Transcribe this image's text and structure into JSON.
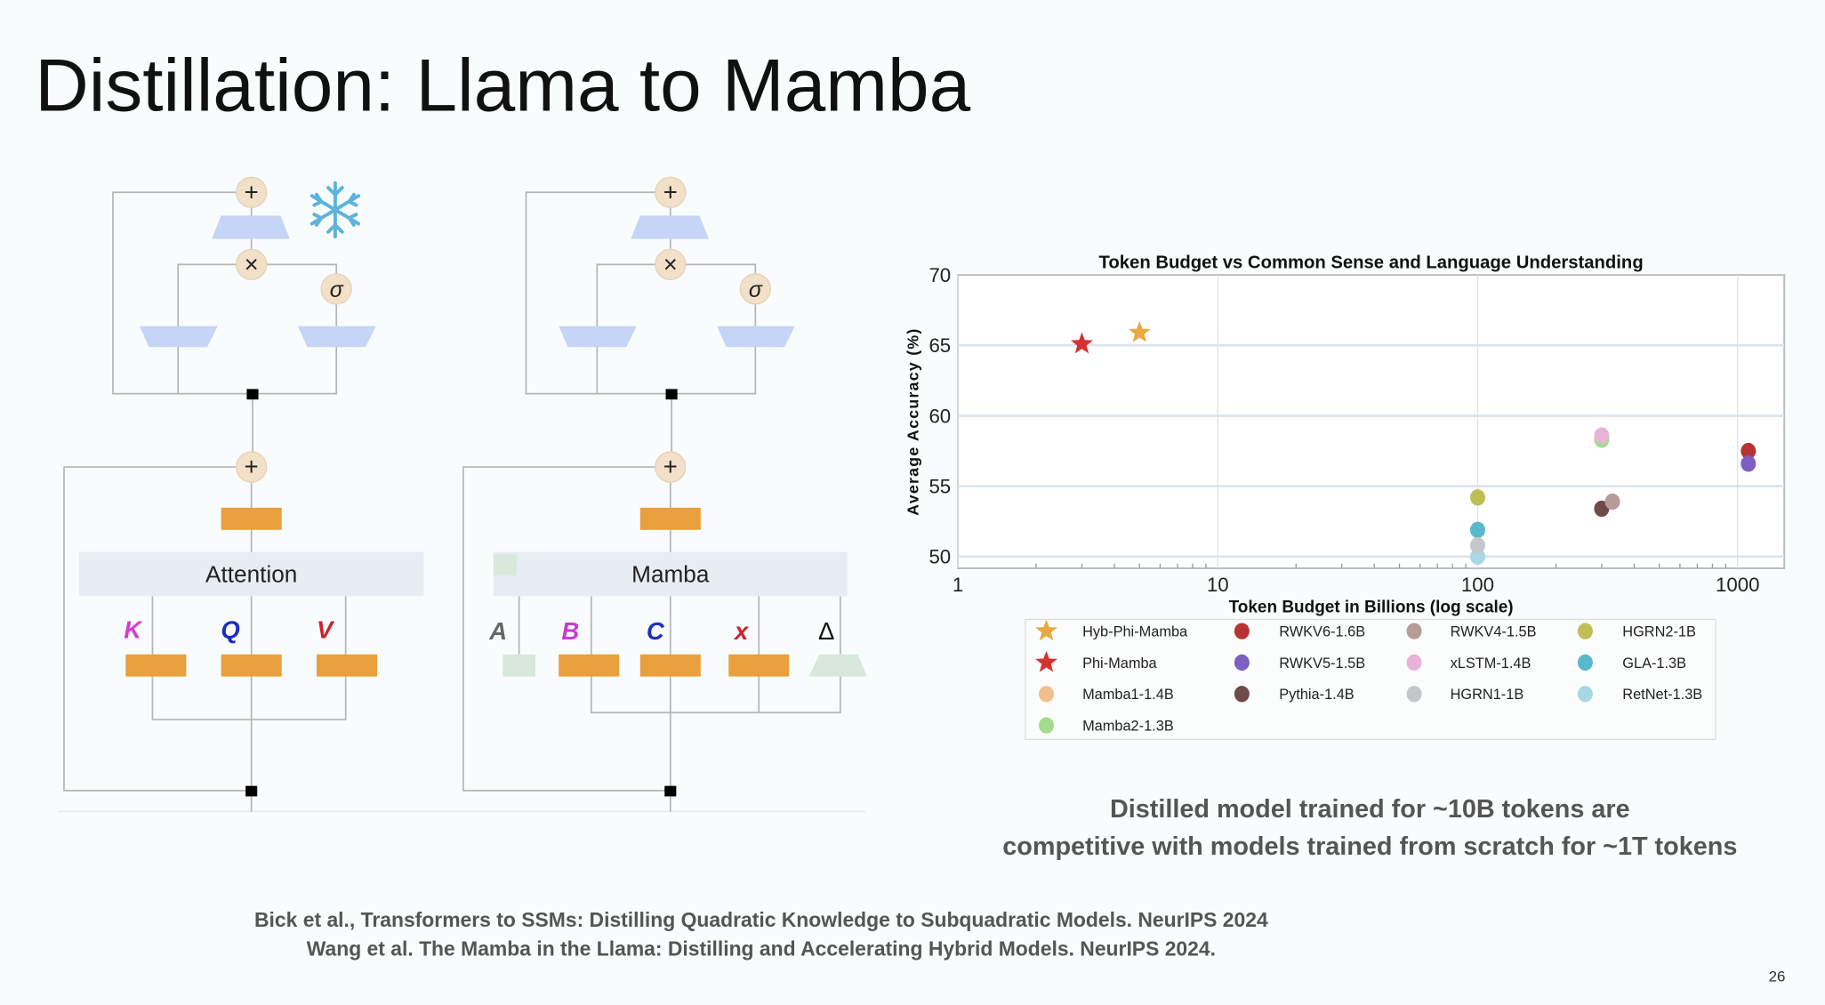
{
  "title": "Distillation: Llama to Mamba",
  "diagram": {
    "left": {
      "block_label": "Attention",
      "inputs": [
        "K",
        "Q",
        "V"
      ],
      "frozen_icon": "snowflake-icon"
    },
    "right": {
      "block_label": "Mamba",
      "inputs": [
        "A",
        "B",
        "C",
        "x",
        "Δ"
      ]
    },
    "symbols": {
      "plus": "+",
      "times": "×",
      "sigma": "σ"
    },
    "colors": {
      "K": "#d63ad6",
      "Q": "#1a2fc0",
      "V": "#d0202a",
      "A": "#666666",
      "B": "#c93ad6",
      "C": "#1a2fc0",
      "x": "#d0202a",
      "Δ": "#111111",
      "projection": "#e99f3c",
      "mlp": "#c4d5f5"
    }
  },
  "chart_data": {
    "type": "scatter",
    "title": "Token Budget vs Common Sense and Language Understanding",
    "xlabel": "Token Budget in Billions (log scale)",
    "ylabel": "Average Accuracy (%)",
    "xscale": "log",
    "xlim": [
      1,
      1500
    ],
    "ylim": [
      49.2,
      70
    ],
    "xticks": [
      1,
      10,
      100,
      1000
    ],
    "xtick_labels": [
      "1",
      "10",
      "100",
      "1000"
    ],
    "yticks": [
      50,
      55,
      60,
      65,
      70
    ],
    "ytick_labels": [
      "50",
      "55",
      "60",
      "65",
      "70"
    ],
    "grid": true,
    "legend_placement": "below",
    "series": [
      {
        "name": "Hyb-Phi-Mamba",
        "marker": "star",
        "color": "#e8a942",
        "x": 5,
        "y": 65.9
      },
      {
        "name": "Phi-Mamba",
        "marker": "star",
        "color": "#d43232",
        "x": 3,
        "y": 65.1
      },
      {
        "name": "Mamba1-1.4B",
        "marker": "circle",
        "color": "#f0bf8c",
        "x": 300,
        "y": 58.5
      },
      {
        "name": "Mamba2-1.3B",
        "marker": "circle",
        "color": "#a3dc8e",
        "x": 300,
        "y": 58.3
      },
      {
        "name": "RWKV6-1.6B",
        "marker": "circle",
        "color": "#b83434",
        "x": 1100,
        "y": 57.5
      },
      {
        "name": "RWKV5-1.5B",
        "marker": "circle",
        "color": "#7b5fc2",
        "x": 1100,
        "y": 56.6
      },
      {
        "name": "Pythia-1.4B",
        "marker": "circle",
        "color": "#6e4a48",
        "x": 300,
        "y": 53.4
      },
      {
        "name": "RWKV4-1.5B",
        "marker": "circle",
        "color": "#b89a98",
        "x": 330,
        "y": 53.9
      },
      {
        "name": "xLSTM-1.4B",
        "marker": "circle",
        "color": "#e8b3d6",
        "x": 300,
        "y": 58.6
      },
      {
        "name": "HGRN1-1B",
        "marker": "circle",
        "color": "#c4c6ca",
        "x": 100,
        "y": 50.8
      },
      {
        "name": "HGRN2-1B",
        "marker": "circle",
        "color": "#bdbf55",
        "x": 100,
        "y": 54.2
      },
      {
        "name": "GLA-1.3B",
        "marker": "circle",
        "color": "#5ab8cc",
        "x": 100,
        "y": 51.9
      },
      {
        "name": "RetNet-1.3B",
        "marker": "circle",
        "color": "#a8d8e6",
        "x": 100,
        "y": 50.0
      }
    ],
    "legend_order": [
      "Hyb-Phi-Mamba",
      "Phi-Mamba",
      "Mamba1-1.4B",
      "Mamba2-1.3B",
      "RWKV6-1.6B",
      "RWKV5-1.5B",
      "Pythia-1.4B",
      "RWKV4-1.5B",
      "xLSTM-1.4B",
      "HGRN1-1B",
      "HGRN2-1B",
      "GLA-1.3B",
      "RetNet-1.3B"
    ]
  },
  "caption": {
    "line1": "Distilled model trained for ~10B tokens are",
    "line2": "competitive with models trained from scratch for ~1T tokens"
  },
  "references": [
    "Bick et al., Transformers to SSMs: Distilling Quadratic Knowledge to Subquadratic Models. NeurIPS 2024",
    "Wang et al.  The Mamba in the Llama: Distilling and Accelerating Hybrid Models. NeurIPS 2024."
  ],
  "page_number": "26"
}
